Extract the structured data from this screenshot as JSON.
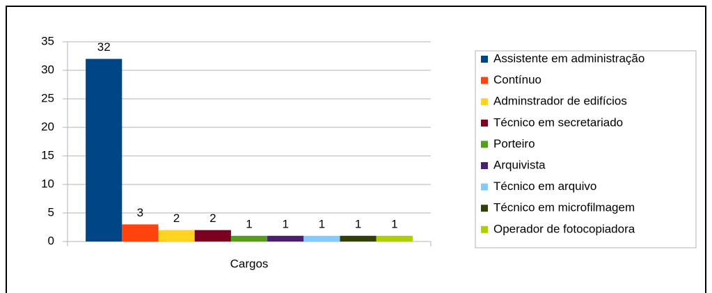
{
  "chart_data": {
    "type": "bar",
    "categories": [
      "Cargos"
    ],
    "series": [
      {
        "name": "Assistente em administração",
        "color": "#004586",
        "values": [
          32
        ]
      },
      {
        "name": "Contínuo",
        "color": "#ff420e",
        "values": [
          3
        ]
      },
      {
        "name": "Adminstrador de edifícios",
        "color": "#ffd320",
        "values": [
          2
        ]
      },
      {
        "name": "Técnico em secretariado",
        "color": "#7e0021",
        "values": [
          2
        ]
      },
      {
        "name": "Porteiro",
        "color": "#579d1c",
        "values": [
          1
        ]
      },
      {
        "name": "Arquivista",
        "color": "#4b1f6f",
        "values": [
          1
        ]
      },
      {
        "name": "Técnico em arquivo",
        "color": "#83caff",
        "values": [
          1
        ]
      },
      {
        "name": "Técnico em microfilmagem",
        "color": "#314004",
        "values": [
          1
        ]
      },
      {
        "name": "Operador de fotocopiadora",
        "color": "#aecf00",
        "values": [
          1
        ]
      }
    ],
    "ylim": [
      0,
      35
    ],
    "yticks": [
      0,
      5,
      10,
      15,
      20,
      25,
      30,
      35
    ],
    "grid": true,
    "legend": "right"
  }
}
